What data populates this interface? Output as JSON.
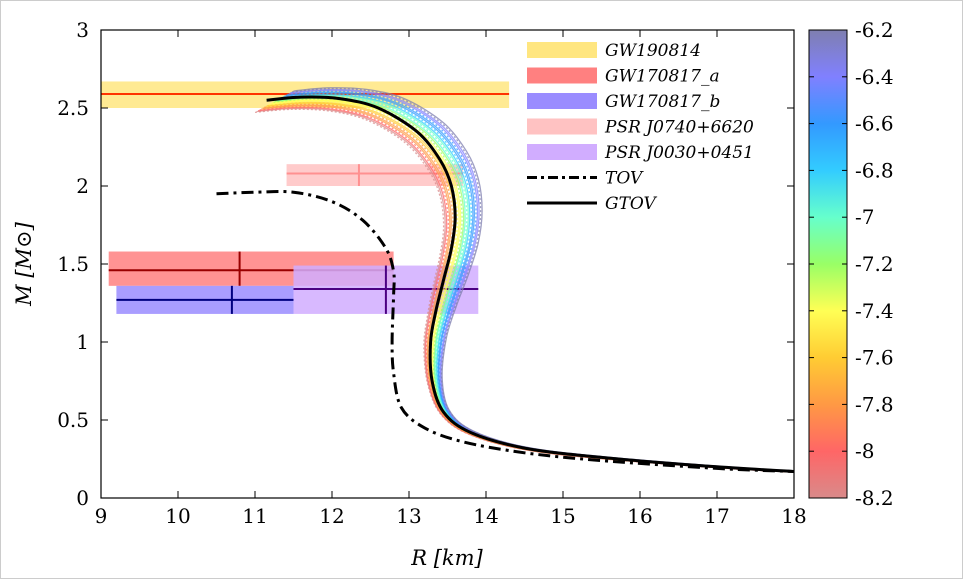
{
  "chart_data": {
    "type": "line",
    "xlabel": "R [km]",
    "ylabel": "M [M⊙]",
    "xlim": [
      9,
      18
    ],
    "ylim": [
      0,
      3
    ],
    "x_ticks": [
      "9",
      "10",
      "11",
      "12",
      "13",
      "14",
      "15",
      "16",
      "17",
      "18"
    ],
    "y_ticks": [
      "0",
      "0.5",
      "1",
      "1.5",
      "2",
      "2.5",
      "3"
    ],
    "colorbar": {
      "range": [
        -8.2,
        -6.2
      ],
      "ticks": [
        "-6.2",
        "-6.4",
        "-6.6",
        "-6.8",
        "-7",
        "-7.2",
        "-7.4",
        "-7.6",
        "-7.8",
        "-8",
        "-8.2"
      ],
      "colors": [
        "#7f7fb0",
        "#8080ff",
        "#3399ff",
        "#33ccff",
        "#66ffcc",
        "#99ff66",
        "#ffff55",
        "#ffcc33",
        "#ff9944",
        "#ff6666",
        "#d98a8a"
      ]
    },
    "legend": [
      {
        "label": "GW190814",
        "color": "#ffe680"
      },
      {
        "label": "GW170817_a",
        "color": "#ff8080"
      },
      {
        "label": "GW170817_b",
        "color": "#9a8cff"
      },
      {
        "label": "PSR J0740+6620",
        "color": "#ffc2c2"
      },
      {
        "label": "PSR J0030+0451",
        "color": "#d1adff"
      },
      {
        "label": "TOV",
        "color": "#000000"
      },
      {
        "label": "GTOV",
        "color": "#000000"
      }
    ],
    "constraints": [
      {
        "name": "GW190814",
        "x": [
          9,
          14.3
        ],
        "y": [
          2.5,
          2.67
        ],
        "center": [
          null,
          2.59
        ],
        "fill": "#ffe680",
        "line": "#ff3300"
      },
      {
        "name": "PSR J0740+6620",
        "x": [
          11.41,
          13.7
        ],
        "y": [
          2.0,
          2.14
        ],
        "center": [
          12.35,
          2.08
        ],
        "fill": "#ffc2c2",
        "line": "#ff9090"
      },
      {
        "name": "GW170817_a",
        "x": [
          9.1,
          12.8
        ],
        "y": [
          1.36,
          1.58
        ],
        "center": [
          10.8,
          1.46
        ],
        "fill": "#ff8080",
        "line": "#990000"
      },
      {
        "name": "GW170817_b",
        "x": [
          9.2,
          11.5
        ],
        "y": [
          1.18,
          1.36
        ],
        "center": [
          10.7,
          1.27
        ],
        "fill": "#9a8cff",
        "line": "#000080"
      },
      {
        "name": "PSR J0030+0451",
        "x": [
          11.5,
          13.9
        ],
        "y": [
          1.18,
          1.49
        ],
        "center": [
          12.7,
          1.34
        ],
        "fill": "#d1adff",
        "line": "#4b0082"
      }
    ],
    "series": [
      {
        "name": "TOV",
        "style": "dash-dot",
        "x": [
          10.5,
          11.0,
          11.5,
          12.0,
          12.4,
          12.7,
          12.8,
          12.8,
          12.78,
          12.8,
          12.9,
          13.2,
          13.7,
          14.5,
          15.5,
          17.0,
          18.0
        ],
        "y": [
          1.95,
          1.96,
          1.96,
          1.9,
          1.78,
          1.6,
          1.45,
          1.3,
          1.0,
          0.8,
          0.58,
          0.45,
          0.36,
          0.29,
          0.24,
          0.19,
          0.17
        ]
      },
      {
        "name": "GTOV",
        "style": "solid",
        "x": [
          11.15,
          11.6,
          12.1,
          12.6,
          13.1,
          13.4,
          13.55,
          13.6,
          13.55,
          13.45,
          13.35,
          13.28,
          13.3,
          13.45,
          13.8,
          14.5,
          15.5,
          17.0,
          18.0
        ],
        "y": [
          2.55,
          2.57,
          2.56,
          2.5,
          2.35,
          2.17,
          2.0,
          1.8,
          1.6,
          1.4,
          1.2,
          1.0,
          0.75,
          0.55,
          0.42,
          0.32,
          0.26,
          0.2,
          0.17
        ]
      }
    ]
  }
}
